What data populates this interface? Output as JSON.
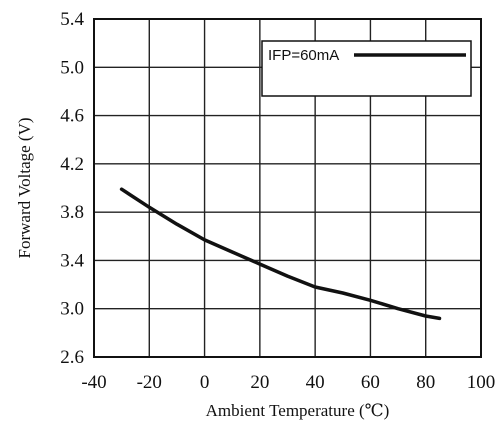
{
  "chart_data": {
    "type": "line",
    "title": "",
    "xlabel": "Ambient Temperature (℃)",
    "ylabel": "Forward Voltage (V)",
    "xlim": [
      -40,
      100
    ],
    "ylim": [
      2.6,
      5.4
    ],
    "x_ticks": [
      -40,
      -20,
      0,
      20,
      40,
      60,
      80,
      100
    ],
    "x_tick_labels": [
      "-40",
      "-20",
      "0",
      "20",
      "40",
      "60",
      "80",
      "100"
    ],
    "y_ticks": [
      2.6,
      3.0,
      3.4,
      3.8,
      4.2,
      4.6,
      5.0,
      5.4
    ],
    "y_tick_labels": [
      "2.6",
      "3.0",
      "3.4",
      "3.8",
      "4.2",
      "4.6",
      "5.0",
      "5.4"
    ],
    "grid": true,
    "legend_position": "top-right",
    "series": [
      {
        "name": "IFP=60mA",
        "color": "#111111",
        "x": [
          -30,
          -20,
          -10,
          0,
          10,
          20,
          30,
          40,
          50,
          60,
          70,
          80,
          85
        ],
        "y": [
          3.99,
          3.84,
          3.7,
          3.57,
          3.47,
          3.37,
          3.27,
          3.18,
          3.13,
          3.07,
          3.0,
          2.94,
          2.92
        ]
      }
    ]
  }
}
